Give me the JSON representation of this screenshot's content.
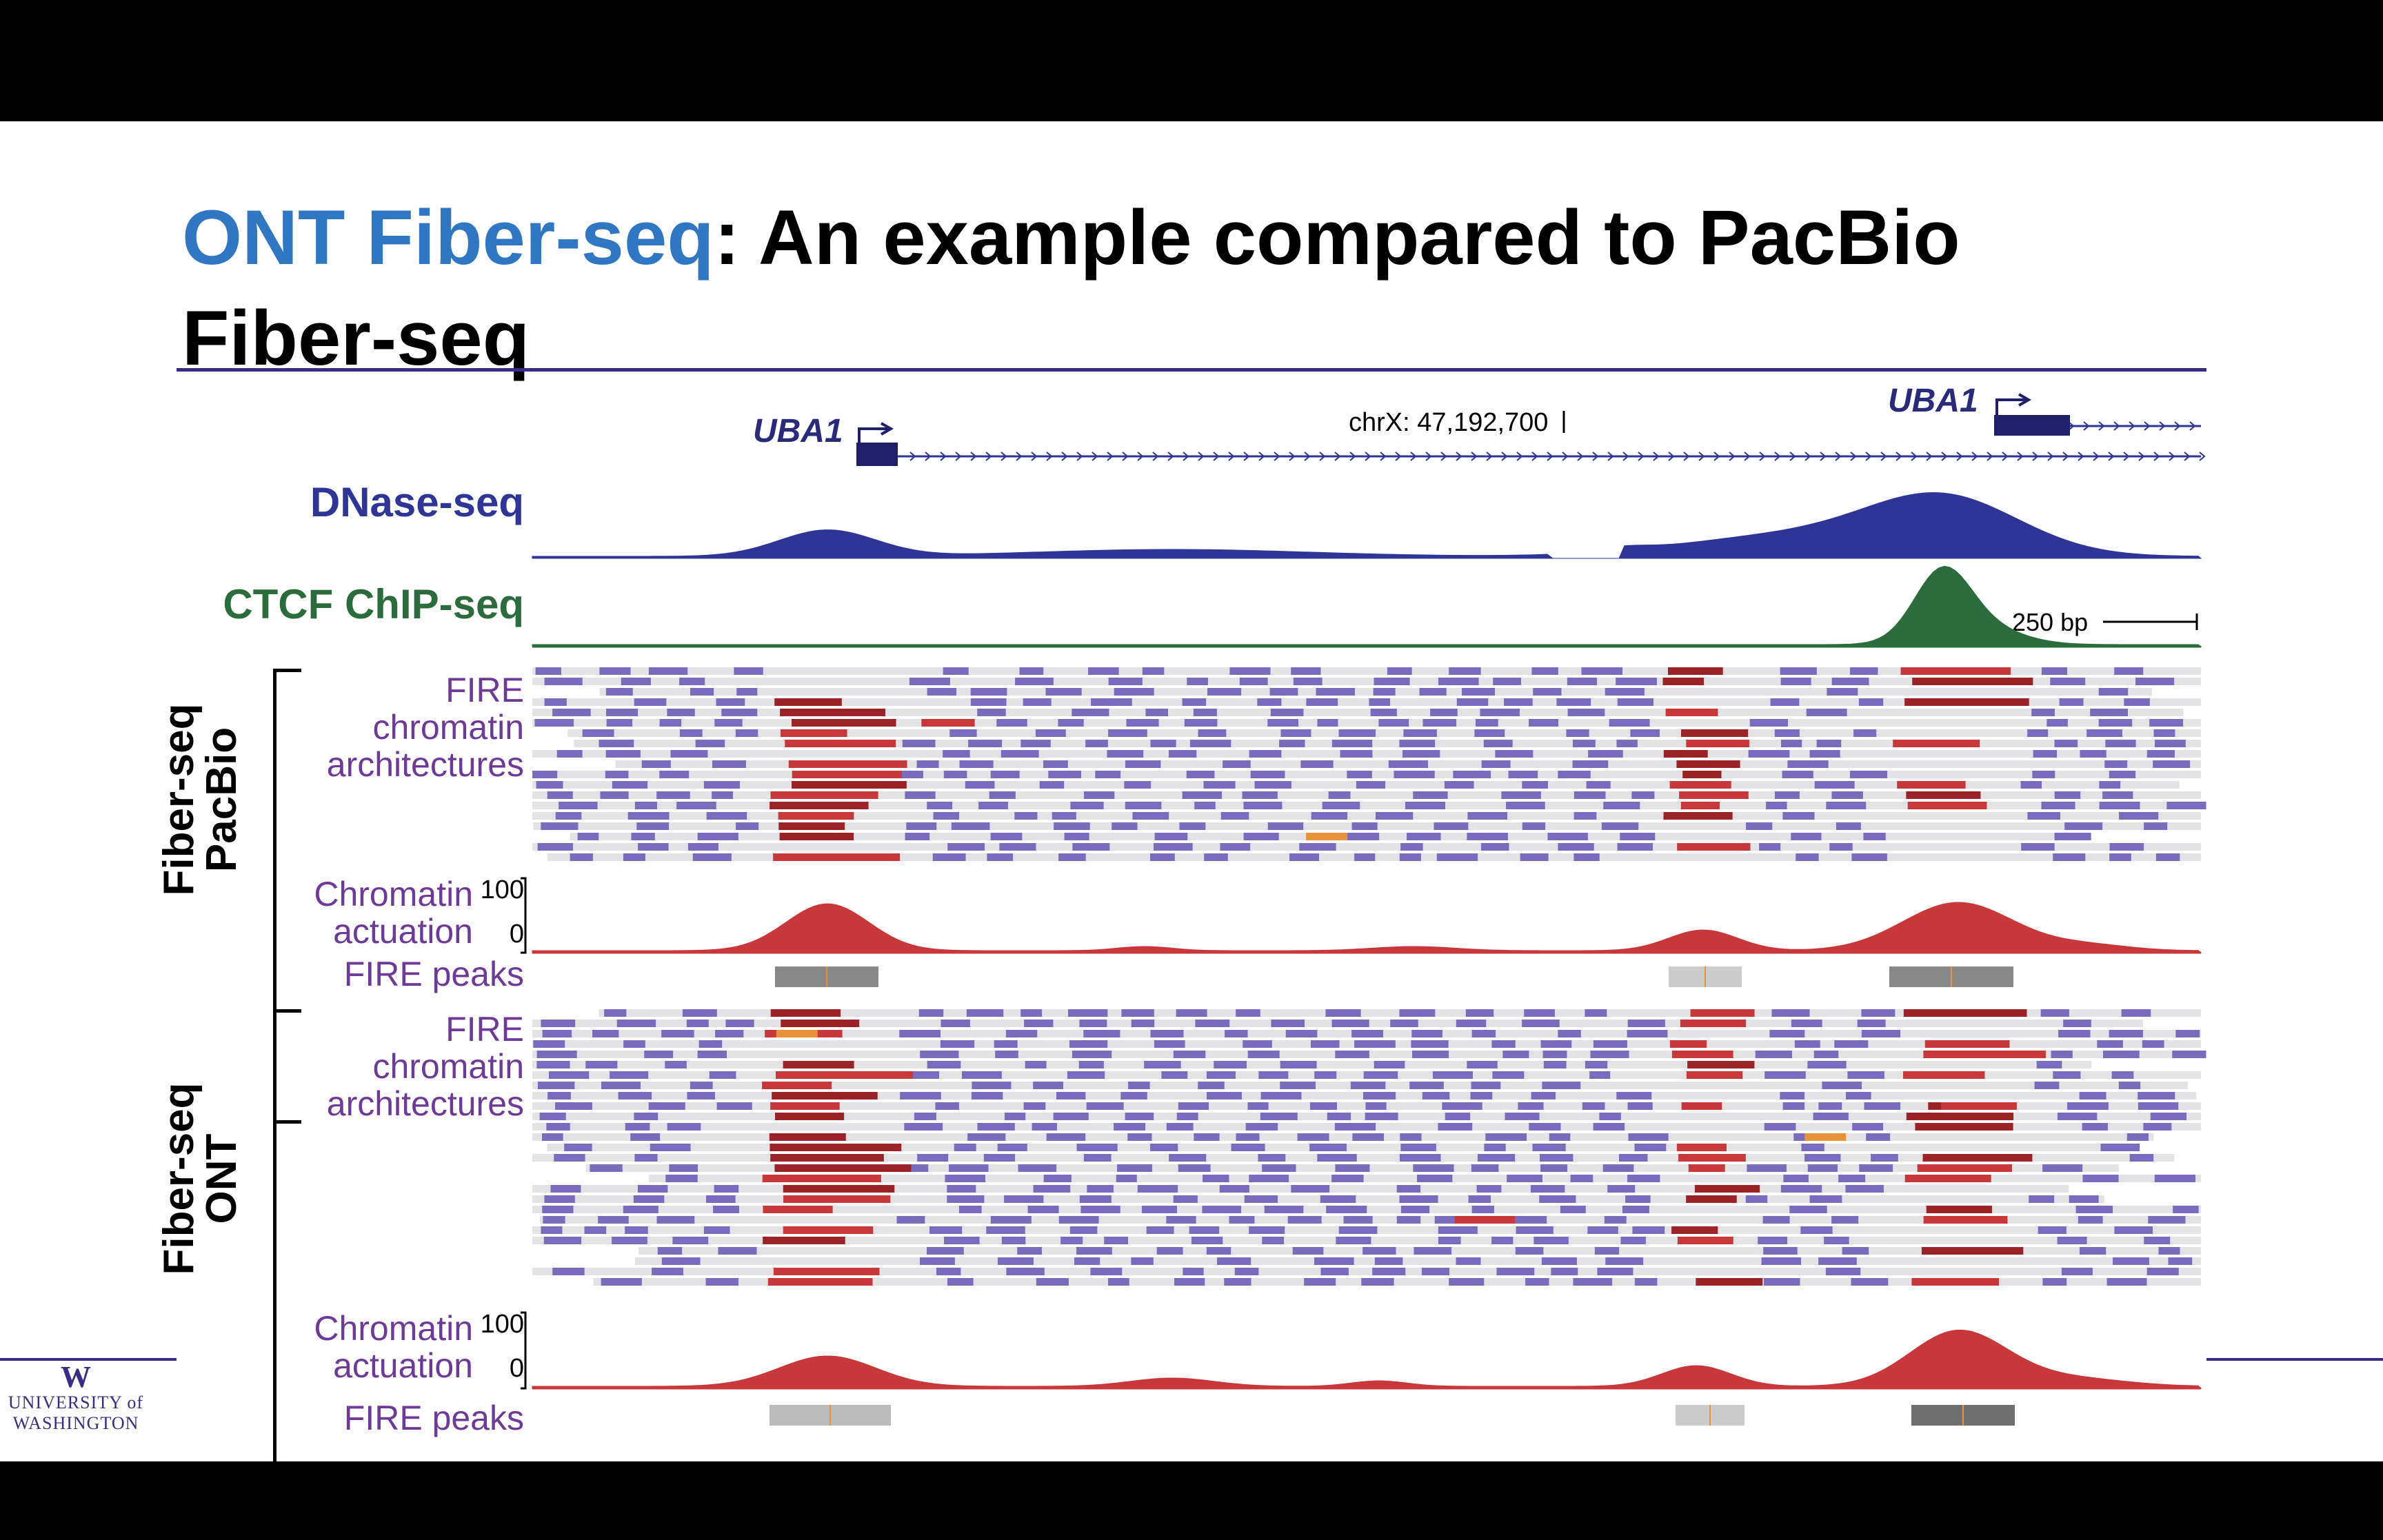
{
  "title": {
    "highlight": "ONT Fiber-seq",
    "rest_line1": ": An example compared to PacBio",
    "line2": "Fiber-seq"
  },
  "genes": {
    "left": "UBA1",
    "right": "UBA1"
  },
  "coordinate": "chrX: 47,192,700",
  "scale_label": "250 bp",
  "tracks": {
    "dnase": "DNase-seq",
    "ctcf": "CTCF ChIP-seq",
    "fire": [
      "FIRE",
      "chromatin",
      "architectures"
    ],
    "actuation": [
      "Chromatin",
      "actuation"
    ],
    "peaks": "FIRE peaks",
    "axis_max": "100",
    "axis_min": "0"
  },
  "groups": {
    "pacbio": [
      "Fiber-seq",
      "PacBio"
    ],
    "ont": [
      "Fiber-seq",
      "ONT"
    ]
  },
  "logo": {
    "mark": "W",
    "line1": "UNIVERSITY of",
    "line2": "WASHINGTON"
  },
  "colors": {
    "title_accent": "#2f77c2",
    "dnase": "#2f3597",
    "ctcf": "#2c6b3c",
    "fire_red": "#c8373a",
    "fire_dark": "#9b2226",
    "nuc_purple": "#7b6bbf",
    "fiber_gray": "#e3e3e6",
    "linker_orange": "#e8923a",
    "rule": "#3b2a86"
  }
}
